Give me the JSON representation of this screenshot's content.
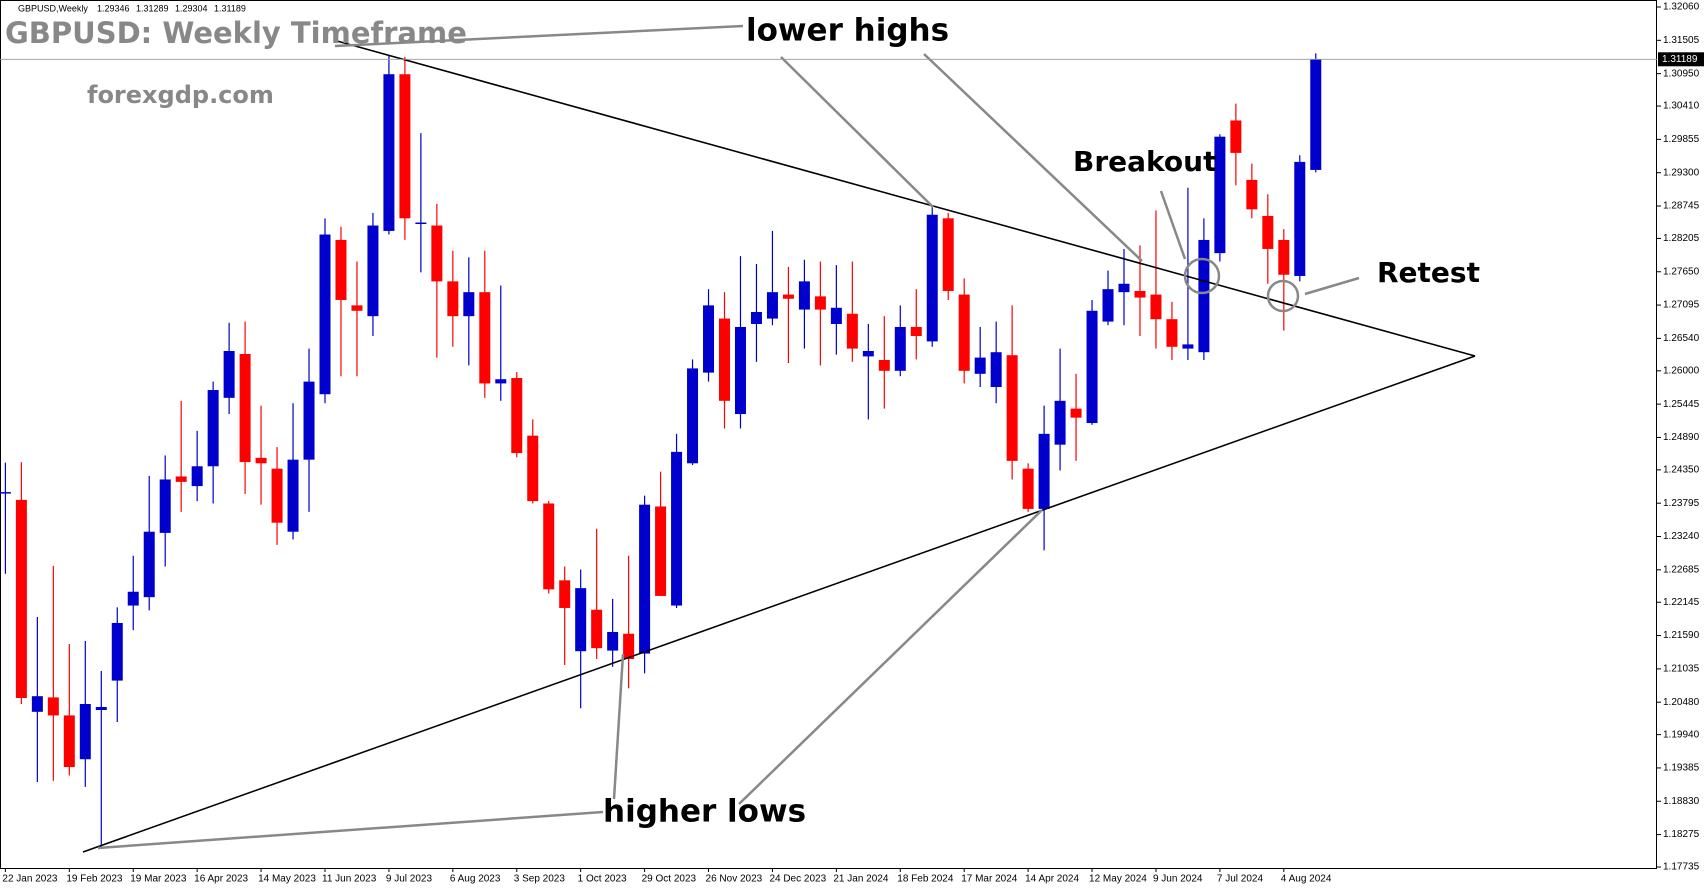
{
  "chart_data": {
    "type": "candlestick",
    "symbol": "GBPUSD,Weekly",
    "title": "GBPUSD: Weekly Timeframe",
    "watermark": "forexgdp.com",
    "annotations": [
      "lower highs",
      "Breakout",
      "Retest",
      "higher lows"
    ],
    "up_color": "#0000cc",
    "down_color": "#ff0000",
    "x": [
      "22 Jan 2023",
      null,
      null,
      null,
      "19 Feb 2023",
      null,
      null,
      null,
      "19 Mar 2023",
      null,
      null,
      null,
      "16 Apr 2023",
      null,
      null,
      null,
      "14 May 2023",
      null,
      null,
      null,
      "11 Jun 2023",
      null,
      null,
      null,
      "9 Jul 2023",
      null,
      null,
      null,
      "6 Aug 2023",
      null,
      null,
      null,
      "3 Sep 2023",
      null,
      null,
      null,
      "1 Oct 2023",
      null,
      null,
      null,
      "29 Oct 2023",
      null,
      null,
      null,
      "26 Nov 2023",
      null,
      null,
      null,
      "24 Dec 2023",
      null,
      null,
      null,
      "21 Jan 2024",
      null,
      null,
      null,
      "18 Feb 2024",
      null,
      null,
      null,
      "17 Mar 2024",
      null,
      null,
      null,
      "14 Apr 2024",
      null,
      null,
      null,
      "12 May 2024",
      null,
      null,
      null,
      "9 Jun 2024",
      null,
      null,
      null,
      "7 Jul 2024",
      null,
      null,
      null,
      "4 Aug 2024",
      null,
      null
    ],
    "open": [
      1.2396,
      1.2385,
      1.2032,
      1.2056,
      1.2026,
      1.1953,
      1.2035,
      1.2084,
      1.2209,
      1.2223,
      1.233,
      1.2424,
      1.2408,
      1.2441,
      1.2555,
      1.2628,
      1.2455,
      1.2437,
      1.2332,
      1.2452,
      1.2561,
      1.2818,
      1.2709,
      1.2691,
      1.2833,
      1.3094,
      1.2845,
      1.2842,
      1.2749,
      1.2691,
      1.2731,
      1.2579,
      1.2588,
      1.2492,
      1.2379,
      1.2251,
      1.2133,
      1.2202,
      1.2134,
      1.2162,
      1.2129,
      1.2374,
      1.2209,
      1.2446,
      1.2597,
      1.2687,
      1.2528,
      1.2678,
      1.2687,
      1.2727,
      1.2702,
      1.2724,
      1.2678,
      1.2695,
      1.2624,
      1.2618,
      1.26,
      1.2673,
      1.2649,
      1.2854,
      1.2727,
      1.2595,
      1.2573,
      1.2626,
      1.2437,
      1.237,
      1.2477,
      1.2537,
      1.2513,
      1.2682,
      1.2731,
      1.2733,
      1.2727,
      1.2686,
      1.2637,
      1.2631,
      1.2796,
      1.3017,
      1.2918,
      1.2858,
      1.2818,
      1.2758,
      1.29346
    ],
    "high": [
      1.2447,
      1.2448,
      1.219,
      1.2275,
      1.2145,
      1.215,
      1.21,
      1.2206,
      1.2292,
      1.2425,
      1.2459,
      1.255,
      1.25,
      1.2582,
      1.268,
      1.2682,
      1.2542,
      1.2473,
      1.2546,
      1.2637,
      1.2854,
      1.284,
      1.2782,
      1.2863,
      1.3126,
      1.3123,
      1.2996,
      1.2878,
      1.28,
      1.2789,
      1.28,
      1.2742,
      1.2598,
      1.2519,
      1.2383,
      1.2274,
      1.2269,
      1.2337,
      1.222,
      1.2292,
      1.2392,
      1.2432,
      1.2495,
      1.2619,
      1.2736,
      1.2731,
      1.2791,
      1.2778,
      1.2833,
      1.2773,
      1.2785,
      1.2782,
      1.2776,
      1.2782,
      1.2678,
      1.2691,
      1.2709,
      1.2736,
      1.2876,
      1.2863,
      1.2754,
      1.2673,
      1.2682,
      1.2709,
      1.2446,
      1.2542,
      1.2637,
      1.2595,
      1.2718,
      1.2767,
      1.2803,
      1.2809,
      1.2867,
      1.2715,
      1.2905,
      1.2854,
      1.2994,
      1.3045,
      1.2945,
      1.2894,
      1.2836,
      1.2959,
      1.31289
    ],
    "low": [
      1.2262,
      1.2045,
      1.1915,
      1.1917,
      1.1926,
      1.1907,
      1.1806,
      1.2015,
      1.2168,
      1.2201,
      1.2274,
      1.2365,
      1.2383,
      1.2379,
      1.2528,
      1.2395,
      1.2377,
      1.231,
      1.2319,
      1.2365,
      1.2546,
      1.2591,
      1.2591,
      1.2658,
      1.2827,
      1.2818,
      1.2764,
      1.2622,
      1.264,
      1.2609,
      1.2555,
      1.255,
      1.2456,
      1.2379,
      1.2229,
      1.211,
      1.2038,
      1.212,
      1.2107,
      1.2071,
      1.2096,
      1.2225,
      1.2205,
      1.2443,
      1.2582,
      1.2504,
      1.2504,
      1.2615,
      1.2676,
      1.2613,
      1.2637,
      1.2609,
      1.2627,
      1.2615,
      1.2519,
      1.2537,
      1.2591,
      1.2619,
      1.264,
      1.2718,
      1.2579,
      1.2573,
      1.2546,
      1.2419,
      1.2365,
      1.2301,
      1.2434,
      1.245,
      1.251,
      1.2676,
      1.2676,
      1.2658,
      1.2637,
      1.2618,
      1.2618,
      1.2618,
      1.2782,
      1.2909,
      1.2854,
      1.2745,
      1.2667,
      1.2749,
      1.29304
    ],
    "close": [
      1.2398,
      1.2055,
      1.2058,
      1.2026,
      1.194,
      1.2045,
      1.204,
      1.218,
      1.2232,
      1.2332,
      1.2419,
      1.2415,
      1.2441,
      1.2568,
      1.2633,
      1.2448,
      1.2446,
      1.2347,
      1.2452,
      1.2582,
      1.2827,
      1.2718,
      1.27,
      1.2842,
      1.3094,
      1.2854,
      1.2847,
      1.2749,
      1.2691,
      1.2731,
      1.2579,
      1.2586,
      1.2463,
      1.2383,
      1.2236,
      1.2205,
      1.2238,
      1.2138,
      1.2165,
      1.212,
      1.2377,
      1.2225,
      1.2465,
      1.2604,
      1.2709,
      1.255,
      1.2673,
      1.2698,
      1.2731,
      1.272,
      1.2749,
      1.2702,
      1.2705,
      1.2637,
      1.2633,
      1.26,
      1.2673,
      1.2658,
      1.286,
      1.2733,
      1.26,
      1.2622,
      1.2631,
      1.245,
      1.237,
      1.2495,
      1.255,
      1.2522,
      1.27,
      1.2736,
      1.2745,
      1.2722,
      1.2686,
      1.264,
      1.2644,
      1.2818,
      1.299,
      1.2963,
      1.2869,
      1.2803,
      1.276,
      1.2948,
      1.31189
    ],
    "ylim": [
      1.17735,
      1.3206
    ],
    "yticks": [
      {
        "value": 1.3206,
        "label": "1.32060"
      },
      1.31505,
      {
        "value": 1.3095,
        "label": "1.30950"
      },
      {
        "value": 1.3041,
        "label": "1.30410"
      },
      1.29855,
      {
        "value": 1.293,
        "label": "1.29300"
      },
      1.28745,
      1.28205,
      {
        "value": 1.2765,
        "label": "1.27650"
      },
      1.27095,
      {
        "value": 1.2654,
        "label": "1.26540"
      },
      {
        "value": 1.26,
        "label": "1.26000"
      },
      1.25445,
      {
        "value": 1.2489,
        "label": "1.24890"
      },
      {
        "value": 1.2435,
        "label": "1.24350"
      },
      1.23795,
      {
        "value": 1.2324,
        "label": "1.23240"
      },
      1.22685,
      1.22145,
      {
        "value": 1.2159,
        "label": "1.21590"
      },
      1.21035,
      {
        "value": 1.2048,
        "label": "1.20480"
      },
      {
        "value": 1.1994,
        "label": "1.19940"
      },
      1.19385,
      {
        "value": 1.1883,
        "label": "1.18830"
      },
      1.18275,
      1.17735
    ],
    "grid": false
  }
}
